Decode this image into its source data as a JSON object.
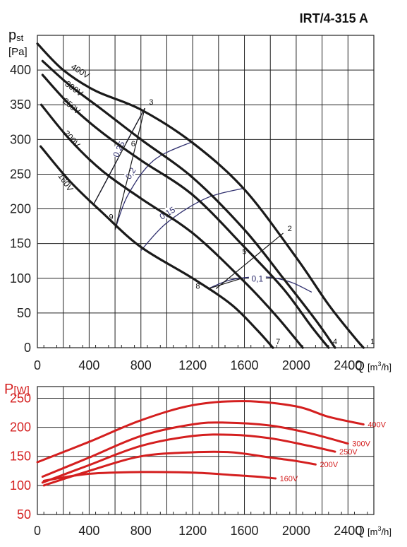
{
  "chart_data": [
    {
      "type": "line",
      "title": "IRT/4-315 A",
      "ylabel_main": "p",
      "ylabel_sub": "st",
      "ylabel_unit": "[Pa]",
      "xlabel_main": "Q",
      "xlabel_unit": "[m",
      "xlabel_exp": "3",
      "xlabel_unit_end": "/h]",
      "xlim": [
        0,
        2600
      ],
      "ylim": [
        0,
        400
      ],
      "xticks": [
        "0",
        "400",
        "800",
        "1200",
        "1600",
        "2000",
        "2400"
      ],
      "yticks": [
        "0",
        "50",
        "100",
        "150",
        "200",
        "250",
        "300",
        "350",
        "400"
      ],
      "grid": true,
      "series": [
        {
          "name": "400V",
          "points": [
            [
              0,
              438
            ],
            [
              200,
              400
            ],
            [
              450,
              370
            ],
            [
              800,
              343
            ],
            [
              1200,
              295
            ],
            [
              1600,
              228
            ],
            [
              2000,
              130
            ],
            [
              2250,
              62
            ],
            [
              2450,
              15
            ],
            [
              2520,
              0
            ]
          ]
        },
        {
          "name": "300V",
          "points": [
            [
              40,
              413
            ],
            [
              250,
              378
            ],
            [
              500,
              343
            ],
            [
              800,
              300
            ],
            [
              1200,
              245
            ],
            [
              1600,
              170
            ],
            [
              1900,
              100
            ],
            [
              2150,
              40
            ],
            [
              2300,
              0
            ]
          ]
        },
        {
          "name": "250V",
          "points": [
            [
              40,
              393
            ],
            [
              250,
              350
            ],
            [
              500,
              310
            ],
            [
              800,
              270
            ],
            [
              1200,
              220
            ],
            [
              1600,
              145
            ],
            [
              1900,
              85
            ],
            [
              2120,
              30
            ],
            [
              2250,
              0
            ]
          ]
        },
        {
          "name": "200V",
          "points": [
            [
              30,
              350
            ],
            [
              250,
              300
            ],
            [
              500,
              255
            ],
            [
              800,
              215
            ],
            [
              1200,
              165
            ],
            [
              1600,
              95
            ],
            [
              1850,
              45
            ],
            [
              2050,
              0
            ]
          ]
        },
        {
          "name": "160V",
          "points": [
            [
              25,
              290
            ],
            [
              250,
              240
            ],
            [
              500,
              195
            ],
            [
              800,
              145
            ],
            [
              1200,
              100
            ],
            [
              1500,
              62
            ],
            [
              1700,
              25
            ],
            [
              1820,
              0
            ]
          ]
        }
      ],
      "efficiency_labels": [
        "0,25",
        "0,2",
        "0,15",
        "0,1"
      ],
      "efficiency_curves": [
        {
          "label": "0,25",
          "points": [
            [
              430,
              205
            ],
            [
              560,
              250
            ],
            [
              700,
              300
            ],
            [
              830,
              345
            ]
          ]
        },
        {
          "label": "0,2",
          "points": [
            [
              600,
              170
            ],
            [
              700,
              220
            ],
            [
              900,
              270
            ],
            [
              1200,
              297
            ]
          ]
        },
        {
          "label": "0,15",
          "points": [
            [
              800,
              140
            ],
            [
              1000,
              180
            ],
            [
              1300,
              215
            ],
            [
              1600,
              230
            ]
          ]
        },
        {
          "label": "0,1",
          "points": [
            [
              1320,
              85
            ],
            [
              1500,
              98
            ],
            [
              1750,
              102
            ],
            [
              1950,
              95
            ],
            [
              2120,
              80
            ]
          ]
        }
      ],
      "point_labels": [
        "1",
        "2",
        "3",
        "4",
        "5",
        "6",
        "7",
        "8",
        "9"
      ]
    },
    {
      "type": "line",
      "ylabel_main": "P",
      "ylabel_unit": "[W]",
      "xlabel_main": "Q",
      "xlabel_unit": "[m",
      "xlabel_exp": "3",
      "xlabel_unit_end": "/h]",
      "xlim": [
        0,
        2600
      ],
      "ylim": [
        50,
        270
      ],
      "xticks": [
        "0",
        "400",
        "800",
        "1200",
        "1600",
        "2000",
        "2400"
      ],
      "yticks": [
        "50",
        "100",
        "150",
        "200",
        "250"
      ],
      "grid": true,
      "series": [
        {
          "name": "400V",
          "points": [
            [
              0,
              140
            ],
            [
              400,
              175
            ],
            [
              800,
              212
            ],
            [
              1200,
              238
            ],
            [
              1600,
              245
            ],
            [
              2000,
              236
            ],
            [
              2250,
              218
            ],
            [
              2520,
              205
            ]
          ]
        },
        {
          "name": "300V",
          "points": [
            [
              40,
              115
            ],
            [
              400,
              148
            ],
            [
              800,
              185
            ],
            [
              1200,
              205
            ],
            [
              1450,
              208
            ],
            [
              1800,
              203
            ],
            [
              2100,
              190
            ],
            [
              2400,
              172
            ]
          ]
        },
        {
          "name": "250V",
          "points": [
            [
              40,
              105
            ],
            [
              400,
              135
            ],
            [
              800,
              168
            ],
            [
              1200,
              185
            ],
            [
              1500,
              187
            ],
            [
              1800,
              181
            ],
            [
              2100,
              168
            ],
            [
              2300,
              158
            ]
          ]
        },
        {
          "name": "200V",
          "points": [
            [
              50,
              100
            ],
            [
              400,
              125
            ],
            [
              800,
              150
            ],
            [
              1200,
              157
            ],
            [
              1500,
              157
            ],
            [
              1800,
              148
            ],
            [
              2000,
              142
            ],
            [
              2150,
              136
            ]
          ]
        },
        {
          "name": "160V",
          "points": [
            [
              50,
              108
            ],
            [
              400,
              120
            ],
            [
              800,
              123
            ],
            [
              1200,
              122
            ],
            [
              1500,
              118
            ],
            [
              1700,
              115
            ],
            [
              1840,
              112
            ]
          ]
        }
      ]
    }
  ],
  "colors": {
    "pressure": "#1a1a1a",
    "efficiency": "#2f2f6e",
    "power": "#d41f1f",
    "grid": "#222222"
  }
}
